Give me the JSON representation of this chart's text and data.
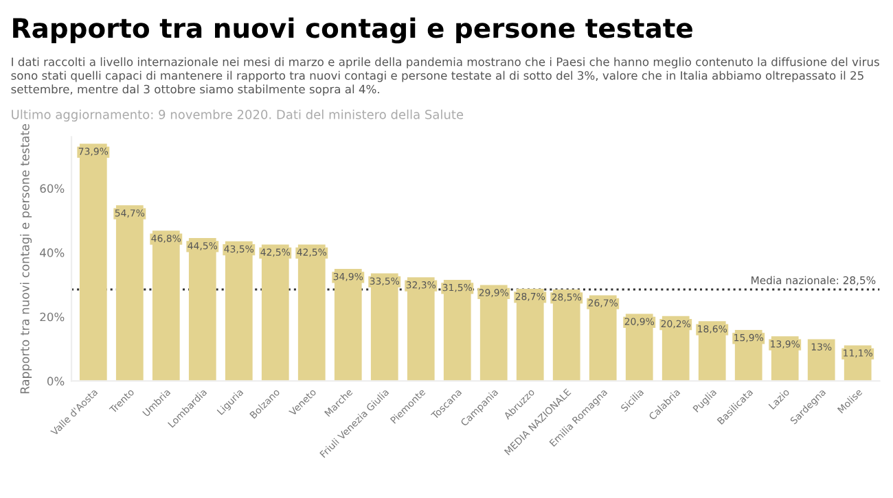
{
  "chart_data": {
    "type": "bar",
    "title": "Rapporto tra nuovi contagi e persone testate",
    "subtitle": "I dati raccolti a livello internazionale nei mesi di marzo e aprile della pandemia mostrano che i Paesi che hanno meglio contenuto la diffusione del virus sono stati quelli capaci di mantenere il rapporto tra nuovi contagi e persone testate al di sotto del 3%, valore che in Italia abbiamo oltrepassato il 25 settembre, mentre dal 3 ottobre siamo stabilmente sopra al 4%.",
    "annotations": [
      "Ultimo aggiornamento: 9 novembre 2020. Dati del ministero della Salute"
    ],
    "ylabel": "Rapporto tra nuovi contagi e persone testate",
    "categories": [
      "Valle d'Aosta",
      "Trento",
      "Umbria",
      "Lombardia",
      "Liguria",
      "Bolzano",
      "Veneto",
      "Marche",
      "Friuli Venezia Giulia",
      "Piemonte",
      "Toscana",
      "Campania",
      "Abruzzo",
      "MEDIA NAZIONALE",
      "Emilia Romagna",
      "Sicilia",
      "Calabria",
      "Puglia",
      "Basilicata",
      "Lazio",
      "Sardegna",
      "Molise"
    ],
    "values": [
      73.9,
      54.7,
      46.8,
      44.5,
      43.5,
      42.5,
      42.5,
      34.9,
      33.5,
      32.3,
      31.5,
      29.9,
      28.7,
      28.5,
      26.7,
      20.9,
      20.2,
      18.6,
      15.9,
      13.9,
      13,
      11.1
    ],
    "value_labels": [
      "73,9%",
      "54,7%",
      "46,8%",
      "44,5%",
      "43,5%",
      "42,5%",
      "42,5%",
      "34,9%",
      "33,5%",
      "32,3%",
      "31,5%",
      "29,9%",
      "28,7%",
      "28,5%",
      "26,7%",
      "20,9%",
      "20,2%",
      "18,6%",
      "15,9%",
      "13,9%",
      "13%",
      "11,1%"
    ],
    "color": "#e3d38f",
    "ylim": [
      0,
      76
    ],
    "yticks": [
      {
        "value": 0,
        "label": "0%"
      },
      {
        "value": 20,
        "label": "20%"
      },
      {
        "value": 40,
        "label": "40%"
      },
      {
        "value": 60,
        "label": "60%"
      }
    ],
    "ref_lines": [
      {
        "axis": "y",
        "value": 28.5,
        "label": "Media nazionale: 28,5%",
        "color": "#333333",
        "line_style": "dotted"
      }
    ],
    "grid": false,
    "legend": false
  }
}
